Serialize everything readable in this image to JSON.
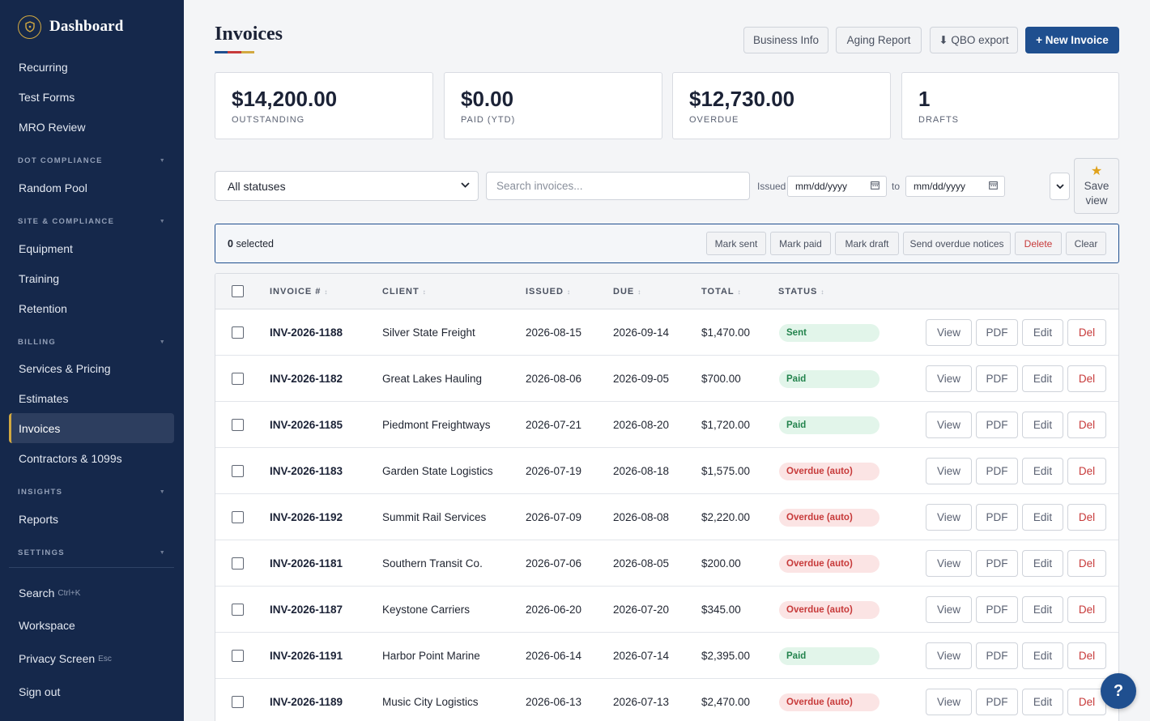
{
  "sidebar": {
    "brand": "Dashboard",
    "items_top": [
      "Recurring",
      "Test Forms",
      "MRO Review"
    ],
    "sections": {
      "dot_compliance": "DOT COMPLIANCE",
      "site_compliance": "SITE & COMPLIANCE",
      "billing": "BILLING",
      "insights": "INSIGHTS",
      "settings": "SETTINGS"
    },
    "random_pool": "Random Pool",
    "equipment": "Equipment",
    "training": "Training",
    "retention": "Retention",
    "services_pricing": "Services & Pricing",
    "estimates": "Estimates",
    "invoices": "Invoices",
    "contractors": "Contractors & 1099s",
    "reports": "Reports",
    "search": "Search",
    "search_hint": "Ctrl+K",
    "workspace": "Workspace",
    "privacy": "Privacy Screen",
    "privacy_hint": "Esc",
    "sign_out": "Sign out"
  },
  "header": {
    "title": "Invoices",
    "business_info": "Business Info",
    "aging_report": "Aging Report",
    "qbo_export": "⬇ QBO export",
    "new_invoice": "+ New Invoice"
  },
  "stats": [
    {
      "value": "$14,200.00",
      "label": "OUTSTANDING"
    },
    {
      "value": "$0.00",
      "label": "PAID (YTD)"
    },
    {
      "value": "$12,730.00",
      "label": "OVERDUE"
    },
    {
      "value": "1",
      "label": "DRAFTS"
    }
  ],
  "filters": {
    "status_value": "All statuses",
    "search_placeholder": "Search invoices...",
    "issued_label": "Issued",
    "date_placeholder": "mm/dd/yyyy",
    "to_label": "to",
    "save_view_1": "Save",
    "save_view_2": "view"
  },
  "bulk": {
    "count": "0",
    "selected_label": "selected",
    "mark_sent": "Mark sent",
    "mark_paid": "Mark paid",
    "mark_draft": "Mark draft",
    "send_overdue": "Send overdue notices",
    "delete": "Delete",
    "clear": "Clear"
  },
  "table": {
    "columns": [
      "INVOICE #",
      "CLIENT",
      "ISSUED",
      "DUE",
      "TOTAL",
      "STATUS"
    ],
    "actions": {
      "view": "View",
      "pdf": "PDF",
      "edit": "Edit",
      "del": "Del"
    },
    "rows": [
      {
        "invoice": "INV-2026-1188",
        "client": "Silver State Freight",
        "issued": "2026-08-15",
        "due": "2026-09-14",
        "total": "$1,470.00",
        "status": "Sent",
        "status_type": "sent"
      },
      {
        "invoice": "INV-2026-1182",
        "client": "Great Lakes Hauling",
        "issued": "2026-08-06",
        "due": "2026-09-05",
        "total": "$700.00",
        "status": "Paid",
        "status_type": "paid"
      },
      {
        "invoice": "INV-2026-1185",
        "client": "Piedmont Freightways",
        "issued": "2026-07-21",
        "due": "2026-08-20",
        "total": "$1,720.00",
        "status": "Paid",
        "status_type": "paid"
      },
      {
        "invoice": "INV-2026-1183",
        "client": "Garden State Logistics",
        "issued": "2026-07-19",
        "due": "2026-08-18",
        "total": "$1,575.00",
        "status": "Overdue (auto)",
        "status_type": "overdue"
      },
      {
        "invoice": "INV-2026-1192",
        "client": "Summit Rail Services",
        "issued": "2026-07-09",
        "due": "2026-08-08",
        "total": "$2,220.00",
        "status": "Overdue (auto)",
        "status_type": "overdue"
      },
      {
        "invoice": "INV-2026-1181",
        "client": "Southern Transit Co.",
        "issued": "2026-07-06",
        "due": "2026-08-05",
        "total": "$200.00",
        "status": "Overdue (auto)",
        "status_type": "overdue"
      },
      {
        "invoice": "INV-2026-1187",
        "client": "Keystone Carriers",
        "issued": "2026-06-20",
        "due": "2026-07-20",
        "total": "$345.00",
        "status": "Overdue (auto)",
        "status_type": "overdue"
      },
      {
        "invoice": "INV-2026-1191",
        "client": "Harbor Point Marine",
        "issued": "2026-06-14",
        "due": "2026-07-14",
        "total": "$2,395.00",
        "status": "Paid",
        "status_type": "paid"
      },
      {
        "invoice": "INV-2026-1189",
        "client": "Music City Logistics",
        "issued": "2026-06-13",
        "due": "2026-07-13",
        "total": "$2,470.00",
        "status": "Overdue (auto)",
        "status_type": "overdue"
      }
    ]
  },
  "help": "?",
  "colors": {
    "sidebar_bg": "#15284b",
    "accent_gold": "#d2a941",
    "primary_blue": "#1f4f8f",
    "underline": [
      "#1f4f8f",
      "#c73a3a",
      "#d2a941"
    ]
  }
}
